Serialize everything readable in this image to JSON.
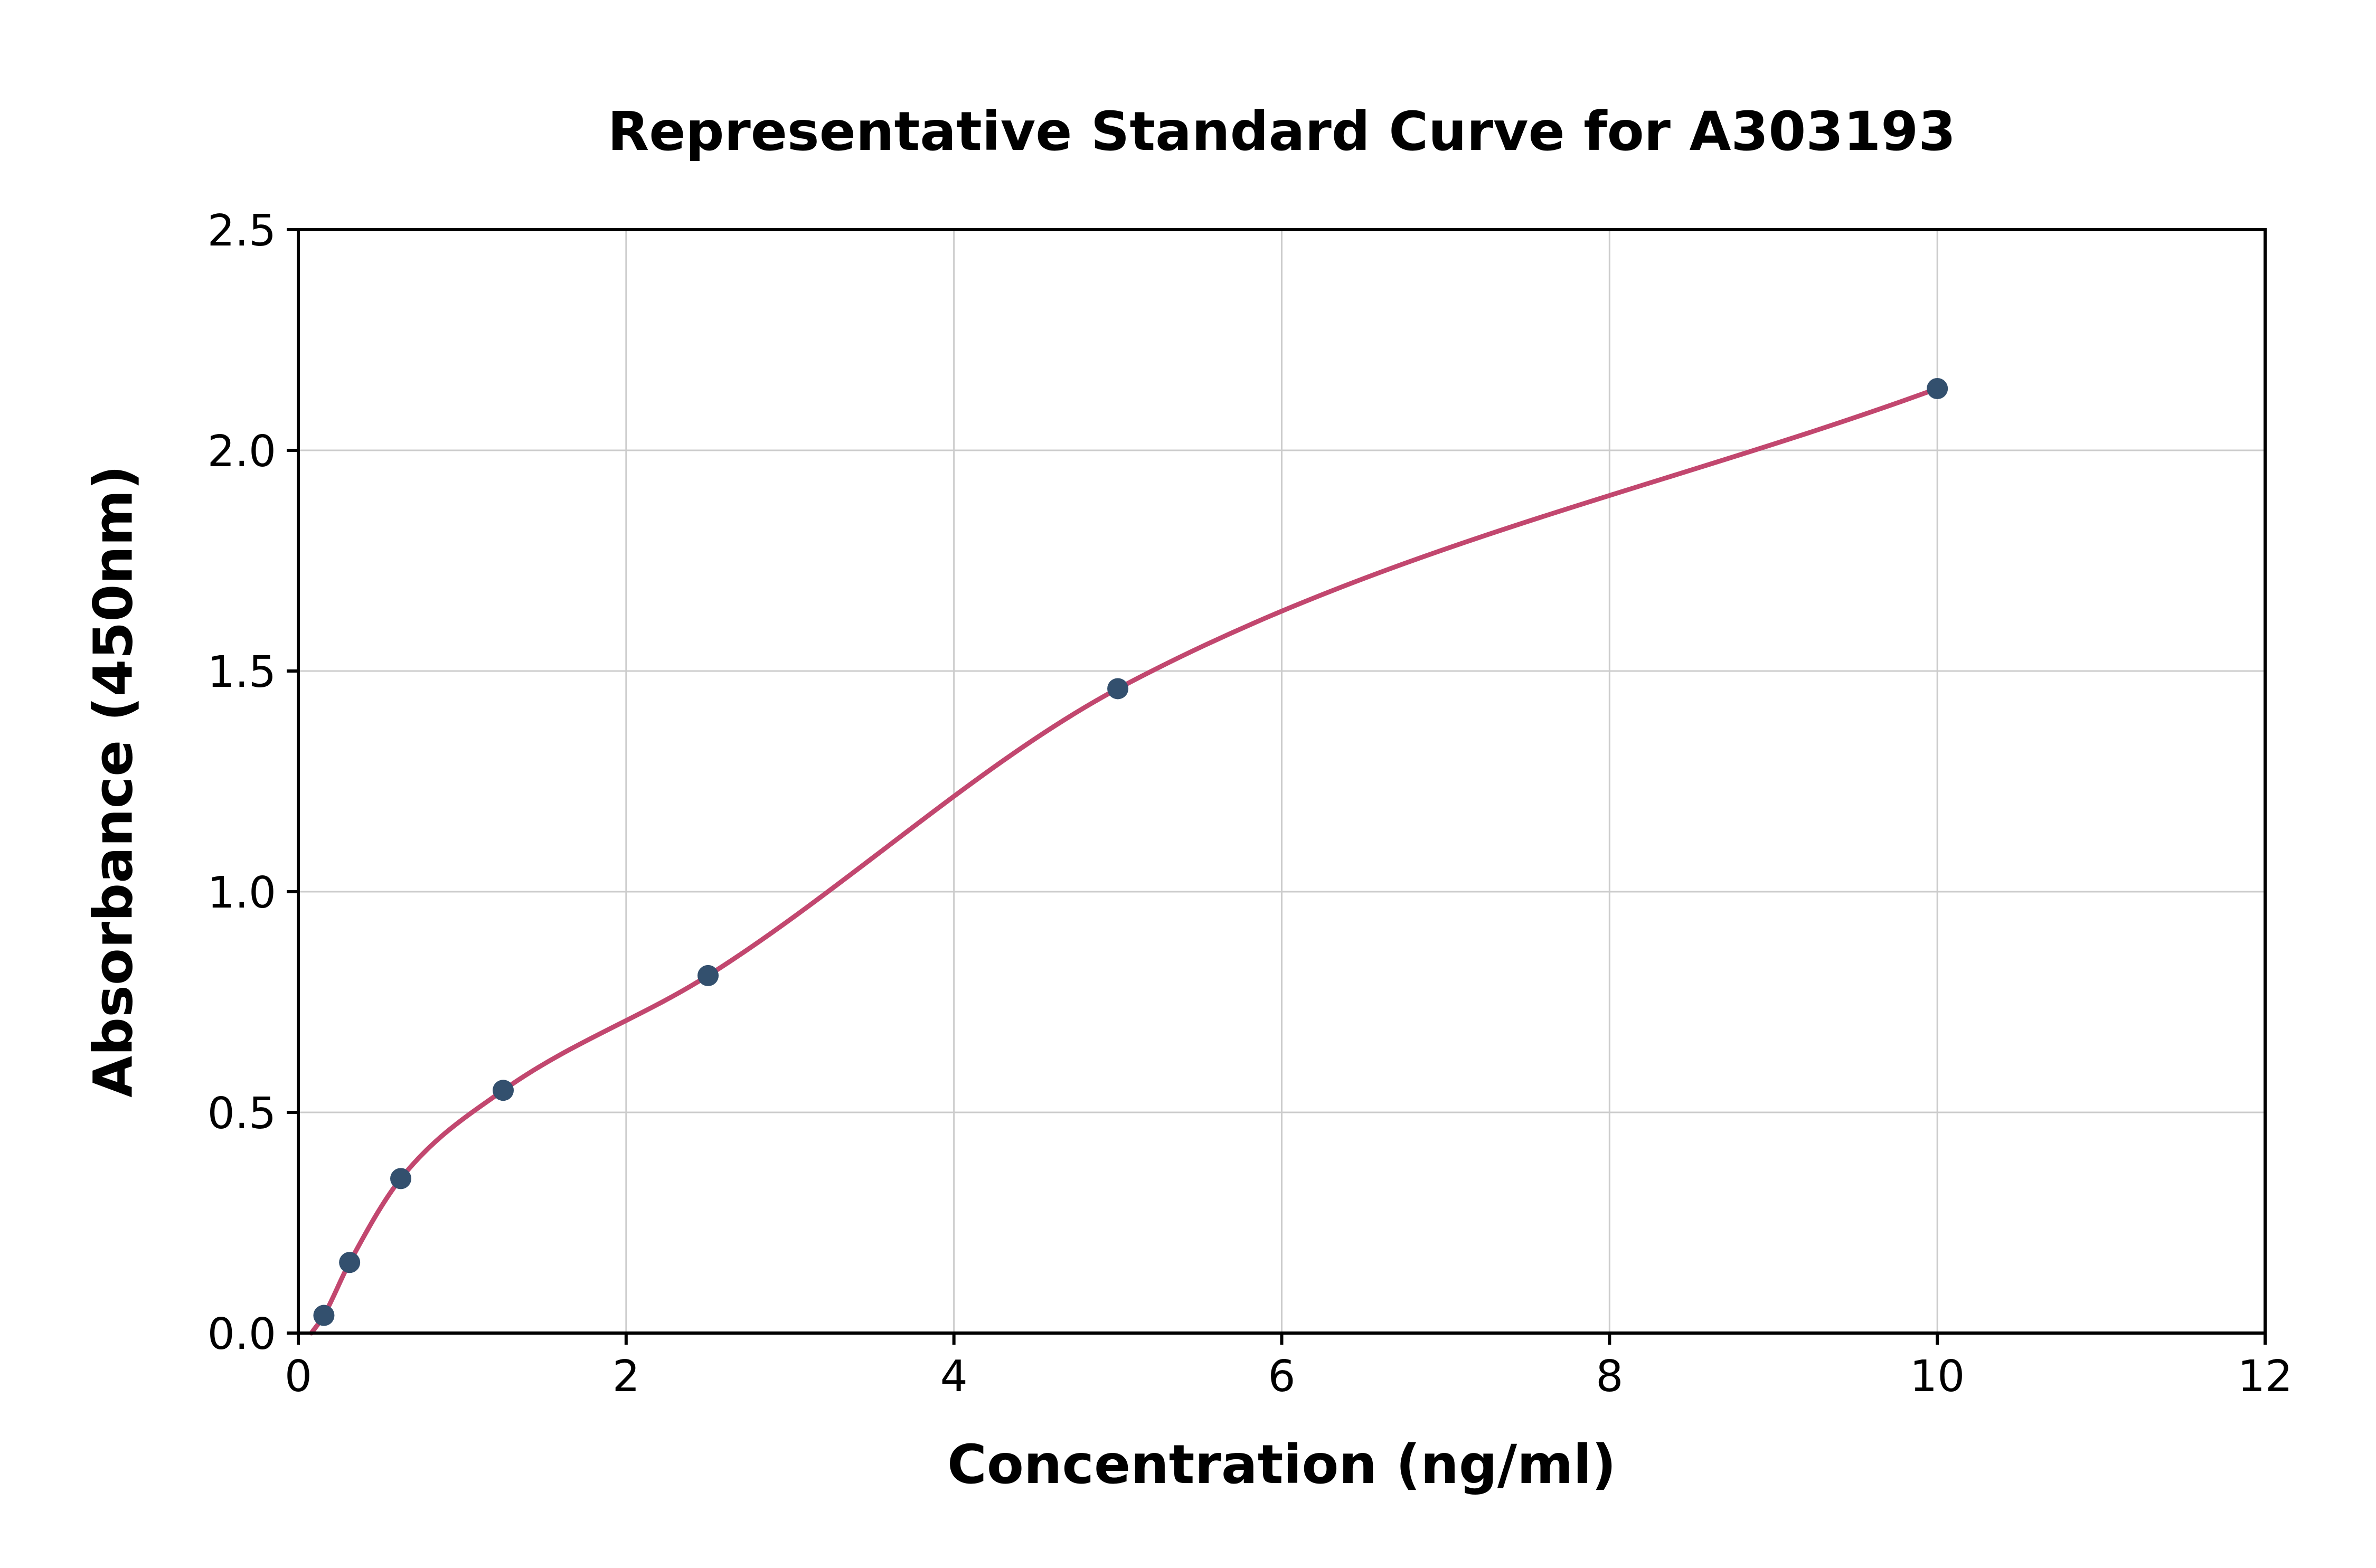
{
  "chart_data": {
    "type": "scatter",
    "title": "Representative Standard Curve for A303193",
    "xlabel": "Concentration (ng/ml)",
    "ylabel": "Absorbance (450nm)",
    "xlim": [
      0,
      12
    ],
    "ylim": [
      0,
      2.5
    ],
    "xticks": [
      0,
      2,
      4,
      6,
      8,
      10,
      12
    ],
    "yticks": [
      0,
      0.5,
      1,
      1.5,
      2,
      2.5
    ],
    "xtick_labels": [
      "0",
      "2",
      "4",
      "6",
      "8",
      "10",
      "12"
    ],
    "ytick_labels": [
      "0.0",
      "0.5",
      "1.0",
      "1.5",
      "2.0",
      "2.5"
    ],
    "grid": true,
    "legend": "none",
    "points": [
      [
        0.156,
        0.04
      ],
      [
        0.313,
        0.16
      ],
      [
        0.625,
        0.35
      ],
      [
        1.25,
        0.55
      ],
      [
        2.5,
        0.81
      ],
      [
        5.0,
        1.46
      ],
      [
        10.0,
        2.14
      ]
    ],
    "fit_curve": {
      "type": "smooth-fit-through-points",
      "start": [
        0.08,
        0.0
      ]
    },
    "colors": {
      "points": "#33506e",
      "curve": "#c2476f",
      "grid": "#cccccc",
      "axes": "#000000",
      "background": "#ffffff"
    }
  }
}
